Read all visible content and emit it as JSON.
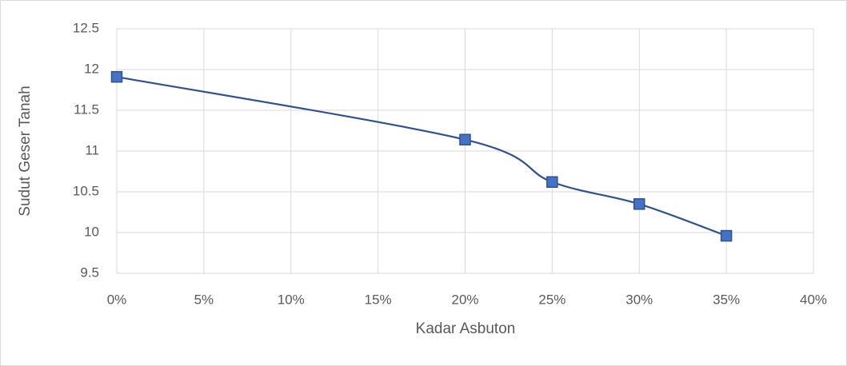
{
  "chart_data": {
    "type": "line",
    "smooth": true,
    "xlabel": "Kadar Asbuton",
    "ylabel": "Sudut Geser Tanah",
    "x": [
      0,
      20,
      25,
      30,
      35
    ],
    "series": [
      {
        "color": "#2f528f",
        "marker_color": "#4472c4",
        "values": [
          11.91,
          11.14,
          10.62,
          10.35,
          9.96
        ]
      }
    ],
    "xlim": [
      0,
      40
    ],
    "xticks": [
      {
        "value": 0,
        "label": "0%"
      },
      {
        "value": 5,
        "label": "5%"
      },
      {
        "value": 10,
        "label": "10%"
      },
      {
        "value": 15,
        "label": "15%"
      },
      {
        "value": 20,
        "label": "20%"
      },
      {
        "value": 25,
        "label": "25%"
      },
      {
        "value": 30,
        "label": "30%"
      },
      {
        "value": 35,
        "label": "35%"
      },
      {
        "value": 40,
        "label": "40%"
      }
    ],
    "ylim": [
      9.5,
      12.5
    ],
    "yticks": [
      9.5,
      10,
      10.5,
      11,
      11.5,
      12,
      12.5
    ],
    "grid": true
  }
}
